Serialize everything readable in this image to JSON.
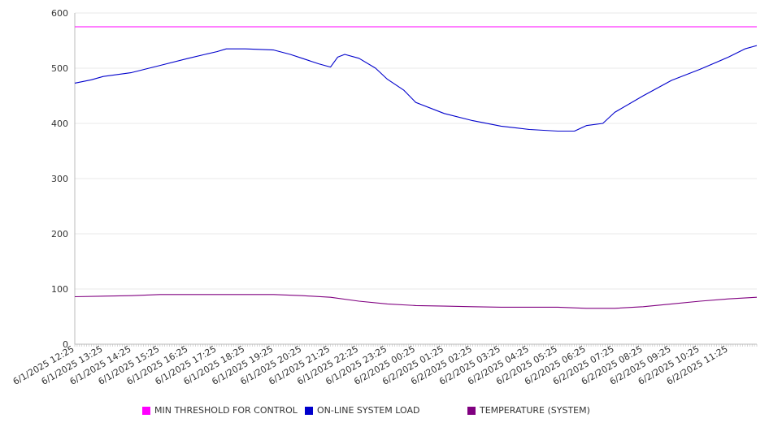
{
  "chart_data": {
    "type": "line",
    "title": "",
    "xlabel": "",
    "ylabel": "",
    "ylim": [
      0,
      600
    ],
    "yticks": [
      0,
      100,
      200,
      300,
      400,
      500,
      600
    ],
    "grid": true,
    "legend_position": "bottom",
    "x_tick_labels": [
      "6/1/2025 12:25",
      "6/1/2025 13:25",
      "6/1/2025 14:25",
      "6/1/2025 15:25",
      "6/1/2025 16:25",
      "6/1/2025 17:25",
      "6/1/2025 18:25",
      "6/1/2025 19:25",
      "6/1/2025 20:25",
      "6/1/2025 21:25",
      "6/1/2025 22:25",
      "6/1/2025 23:25",
      "6/2/2025 00:25",
      "6/2/2025 01:25",
      "6/2/2025 02:25",
      "6/2/2025 03:25",
      "6/2/2025 04:25",
      "6/2/2025 05:25",
      "6/2/2025 06:25",
      "6/2/2025 07:25",
      "6/2/2025 08:25",
      "6/2/2025 09:25",
      "6/2/2025 10:25",
      "6/2/2025 11:25"
    ],
    "x_range": [
      "6/1/2025 12:25",
      "6/2/2025 12:25"
    ],
    "series": [
      {
        "name": "MIN THRESHOLD FOR CONTROL",
        "color": "#ff00ff",
        "points": [
          [
            "6/1/2025 12:25",
            575
          ],
          [
            "6/2/2025 12:25",
            575
          ]
        ]
      },
      {
        "name": "ON-LINE SYSTEM LOAD",
        "color": "#0000cc",
        "points": [
          [
            "6/1/2025 12:25",
            473
          ],
          [
            "6/1/2025 13:00",
            479
          ],
          [
            "6/1/2025 13:25",
            485
          ],
          [
            "6/1/2025 14:25",
            492
          ],
          [
            "6/1/2025 15:25",
            505
          ],
          [
            "6/1/2025 16:25",
            518
          ],
          [
            "6/1/2025 17:00",
            525
          ],
          [
            "6/1/2025 17:25",
            530
          ],
          [
            "6/1/2025 17:45",
            535
          ],
          [
            "6/1/2025 18:25",
            535
          ],
          [
            "6/1/2025 19:25",
            533
          ],
          [
            "6/1/2025 20:00",
            525
          ],
          [
            "6/1/2025 20:25",
            518
          ],
          [
            "6/1/2025 21:00",
            508
          ],
          [
            "6/1/2025 21:25",
            502
          ],
          [
            "6/1/2025 21:40",
            520
          ],
          [
            "6/1/2025 21:55",
            525
          ],
          [
            "6/1/2025 22:25",
            518
          ],
          [
            "6/1/2025 23:00",
            500
          ],
          [
            "6/1/2025 23:25",
            480
          ],
          [
            "6/2/2025 00:00",
            460
          ],
          [
            "6/2/2025 00:25",
            438
          ],
          [
            "6/2/2025 01:25",
            418
          ],
          [
            "6/2/2025 02:25",
            405
          ],
          [
            "6/2/2025 03:25",
            395
          ],
          [
            "6/2/2025 04:25",
            389
          ],
          [
            "6/2/2025 05:25",
            386
          ],
          [
            "6/2/2025 06:00",
            386
          ],
          [
            "6/2/2025 06:25",
            396
          ],
          [
            "6/2/2025 07:00",
            400
          ],
          [
            "6/2/2025 07:25",
            420
          ],
          [
            "6/2/2025 08:25",
            450
          ],
          [
            "6/2/2025 09:25",
            478
          ],
          [
            "6/2/2025 10:25",
            498
          ],
          [
            "6/2/2025 11:25",
            520
          ],
          [
            "6/2/2025 12:00",
            535
          ],
          [
            "6/2/2025 12:25",
            541
          ]
        ]
      },
      {
        "name": "TEMPERATURE (SYSTEM)",
        "color": "#800080",
        "points": [
          [
            "6/1/2025 12:25",
            86
          ],
          [
            "6/1/2025 14:25",
            88
          ],
          [
            "6/1/2025 15:25",
            90
          ],
          [
            "6/1/2025 19:25",
            90
          ],
          [
            "6/1/2025 20:25",
            88
          ],
          [
            "6/1/2025 21:25",
            85
          ],
          [
            "6/1/2025 22:25",
            78
          ],
          [
            "6/1/2025 23:25",
            73
          ],
          [
            "6/2/2025 00:25",
            70
          ],
          [
            "6/2/2025 01:25",
            69
          ],
          [
            "6/2/2025 02:25",
            68
          ],
          [
            "6/2/2025 03:25",
            67
          ],
          [
            "6/2/2025 04:25",
            67
          ],
          [
            "6/2/2025 05:25",
            67
          ],
          [
            "6/2/2025 06:25",
            65
          ],
          [
            "6/2/2025 07:25",
            65
          ],
          [
            "6/2/2025 08:25",
            68
          ],
          [
            "6/2/2025 09:25",
            73
          ],
          [
            "6/2/2025 10:25",
            78
          ],
          [
            "6/2/2025 11:25",
            82
          ],
          [
            "6/2/2025 12:25",
            85
          ]
        ]
      }
    ]
  }
}
